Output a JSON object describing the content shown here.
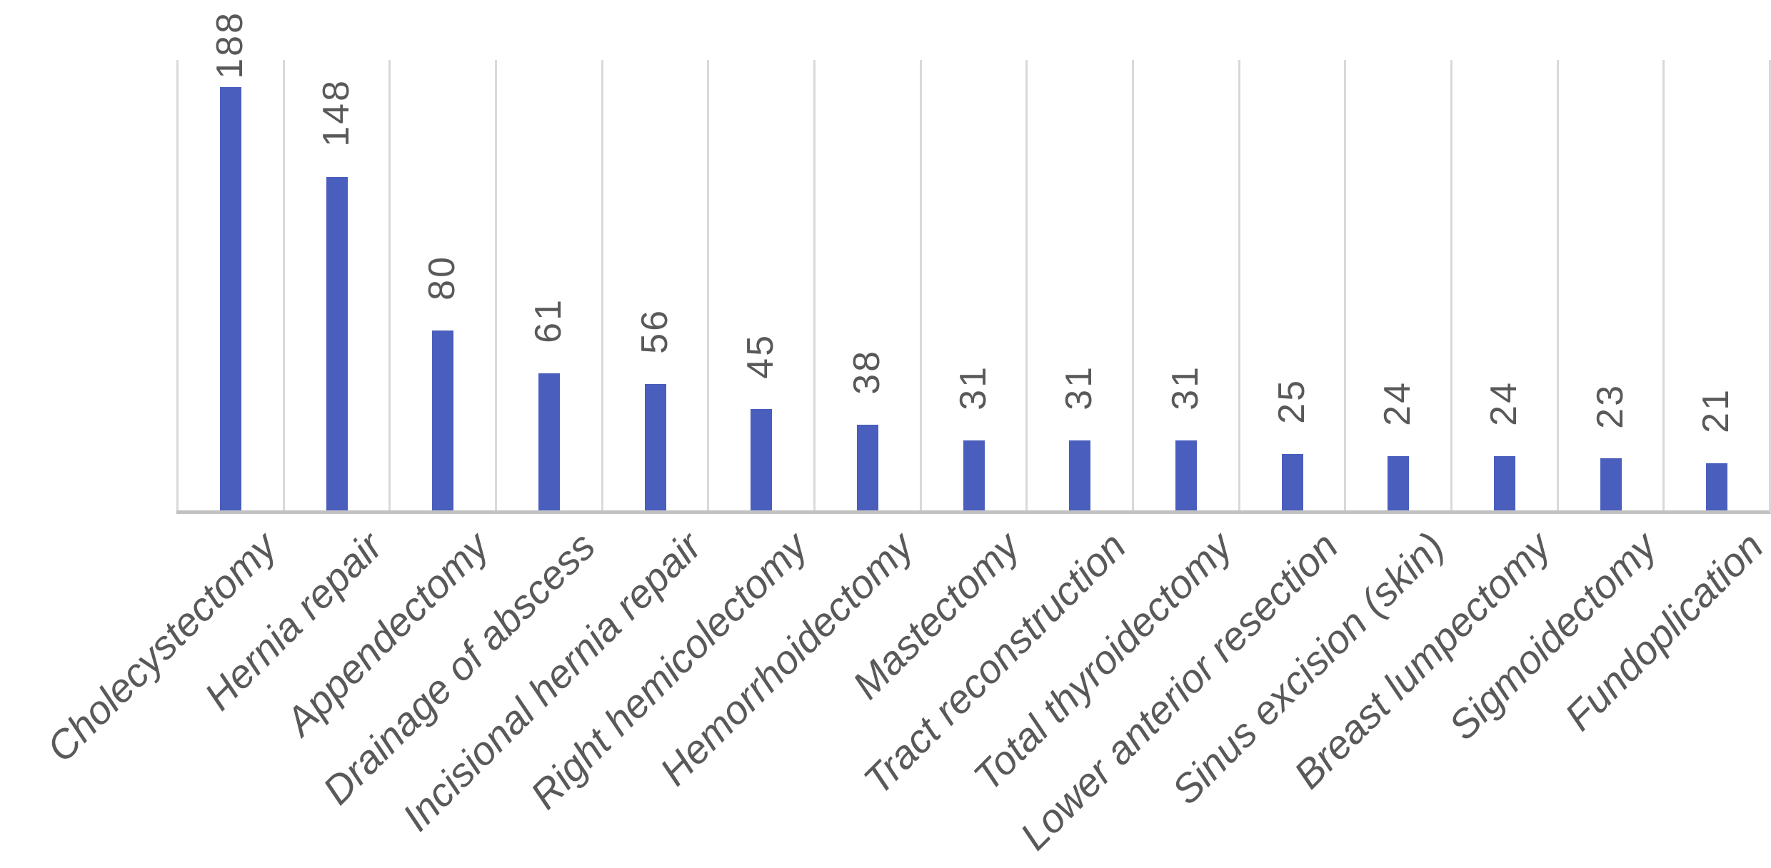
{
  "chart_data": {
    "type": "bar",
    "title": "",
    "xlabel": "",
    "ylabel": "",
    "categories": [
      "Cholecystectomy",
      "Hernia repair",
      "Appendectomy",
      "Drainage of abscess",
      "Incisional hernia repair",
      "Right hemicolectomy",
      "Hemorrhoidectomy",
      "Mastectomy",
      "Tract reconstruction",
      "Total thyroidectomy",
      "Lower anterior resection",
      "Sinus excision (skin)",
      "Breast lumpectomy",
      "Sigmoidectomy",
      "Fundoplication"
    ],
    "values": [
      188,
      148,
      80,
      61,
      56,
      45,
      38,
      31,
      31,
      31,
      25,
      24,
      24,
      23,
      21
    ],
    "ylim": [
      0,
      200
    ],
    "grid": "vertical category separators only, no horizontal gridlines, no y-axis labels",
    "legend": "none",
    "value_label_style": "rotated 90deg (reads bottom-to-top), above each bar",
    "category_label_style": "rotated 45deg, italic",
    "colors": {
      "bar": "#4A5EBD",
      "gridline": "#D9D9D9",
      "axis_line": "#C2C2C2",
      "text": "#595959",
      "background": "#FFFFFF"
    }
  }
}
